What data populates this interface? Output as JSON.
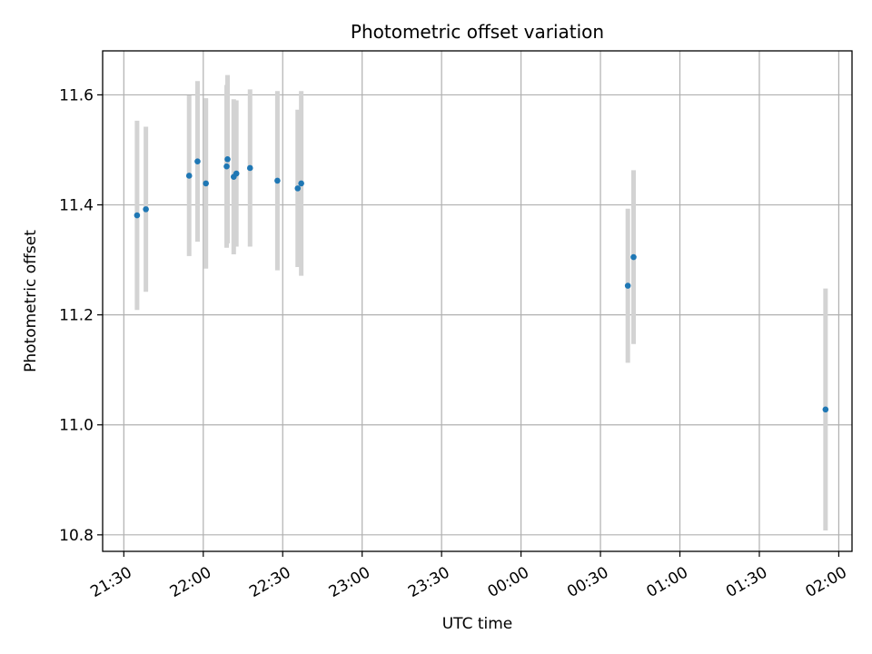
{
  "chart_data": {
    "type": "scatter",
    "title": "Photometric offset variation",
    "xlabel": "UTC time",
    "ylabel": "Photometric offset",
    "x_axis": {
      "kind": "time",
      "range": [
        "21:22",
        "02:05"
      ],
      "ticks": [
        "21:30",
        "22:00",
        "22:30",
        "23:00",
        "23:30",
        "00:00",
        "00:30",
        "01:00",
        "01:30",
        "02:00"
      ]
    },
    "y_axis": {
      "range": [
        10.77,
        11.68
      ],
      "ticks": [
        "10.8",
        "11.0",
        "11.2",
        "11.4",
        "11.6"
      ]
    },
    "grid": true,
    "colors": {
      "points": "#1f77b4",
      "errorbars": "#d3d3d3",
      "grid": "#b0b0b0"
    },
    "points": [
      {
        "time": "21:35:00",
        "y": 11.381,
        "yerr": 0.172
      },
      {
        "time": "21:38:20",
        "y": 11.392,
        "yerr": 0.15
      },
      {
        "time": "21:54:40",
        "y": 11.453,
        "yerr": 0.146
      },
      {
        "time": "21:57:50",
        "y": 11.479,
        "yerr": 0.146
      },
      {
        "time": "22:01:00",
        "y": 11.439,
        "yerr": 0.155
      },
      {
        "time": "22:08:50",
        "y": 11.47,
        "yerr": 0.148
      },
      {
        "time": "22:09:10",
        "y": 11.483,
        "yerr": 0.153
      },
      {
        "time": "22:11:30",
        "y": 11.451,
        "yerr": 0.141
      },
      {
        "time": "22:12:30",
        "y": 11.457,
        "yerr": 0.133
      },
      {
        "time": "22:17:40",
        "y": 11.467,
        "yerr": 0.143
      },
      {
        "time": "22:28:00",
        "y": 11.444,
        "yerr": 0.163
      },
      {
        "time": "22:35:40",
        "y": 11.43,
        "yerr": 0.143
      },
      {
        "time": "22:37:00",
        "y": 11.439,
        "yerr": 0.168
      },
      {
        "time": "00:40:20",
        "y": 11.253,
        "yerr": 0.14
      },
      {
        "time": "00:42:30",
        "y": 11.305,
        "yerr": 0.158
      },
      {
        "time": "01:55:00",
        "y": 11.028,
        "yerr": 0.22
      }
    ]
  }
}
